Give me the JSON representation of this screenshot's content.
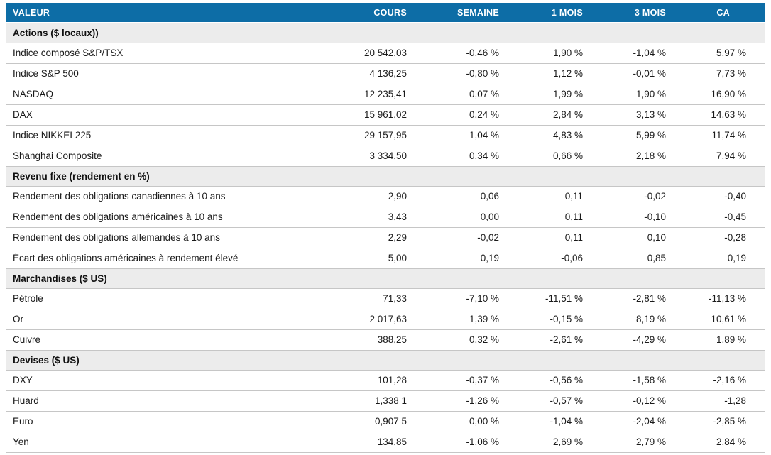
{
  "theme": {
    "header_bg": "#0d6da6",
    "positive": "#00a25d",
    "negative": "#e11b22",
    "neutral": "#1a1a1a",
    "section_bg": "#ececec",
    "row_border": "#c6c6c6"
  },
  "table": {
    "columns": [
      "VALEUR",
      "COURS",
      "SEMAINE",
      "1 MOIS",
      "3 MOIS",
      "CA"
    ],
    "sections": [
      {
        "title": "Actions ($ locaux))",
        "rows": [
          {
            "label": "Indice composé S&P/TSX",
            "cours": "20 542,03",
            "changes": [
              "-0,46 %",
              "1,90 %",
              "-1,04 %",
              "5,97 %"
            ],
            "trend": [
              "neg",
              "pos",
              "neg",
              "pos"
            ]
          },
          {
            "label": "Indice S&P 500",
            "cours": "4 136,25",
            "changes": [
              "-0,80 %",
              "1,12 %",
              "-0,01 %",
              "7,73 %"
            ],
            "trend": [
              "neg",
              "pos",
              "neg",
              "pos"
            ]
          },
          {
            "label": "NASDAQ",
            "cours": "12 235,41",
            "changes": [
              "0,07 %",
              "1,99 %",
              "1,90 %",
              "16,90 %"
            ],
            "trend": [
              "pos",
              "pos",
              "pos",
              "pos"
            ]
          },
          {
            "label": "DAX",
            "cours": "15 961,02",
            "changes": [
              "0,24 %",
              "2,84 %",
              "3,13 %",
              "14,63 %"
            ],
            "trend": [
              "pos",
              "pos",
              "pos",
              "pos"
            ]
          },
          {
            "label": "Indice NIKKEI 225",
            "cours": "29 157,95",
            "changes": [
              "1,04 %",
              "4,83 %",
              "5,99 %",
              "11,74 %"
            ],
            "trend": [
              "pos",
              "pos",
              "pos",
              "pos"
            ]
          },
          {
            "label": "Shanghai Composite",
            "cours": "3 334,50",
            "changes": [
              "0,34 %",
              "0,66 %",
              "2,18 %",
              "7,94 %"
            ],
            "trend": [
              "pos",
              "pos",
              "pos",
              "pos"
            ]
          }
        ]
      },
      {
        "title": "Revenu fixe (rendement en %)",
        "rows": [
          {
            "label": "Rendement des obligations canadiennes à 10 ans",
            "cours": "2,90",
            "changes": [
              "0,06",
              "0,11",
              "-0,02",
              "-0,40"
            ],
            "trend": [
              "neg",
              "neg",
              "pos",
              "pos"
            ]
          },
          {
            "label": "Rendement des obligations américaines à 10 ans",
            "cours": "3,43",
            "changes": [
              "0,00",
              "0,11",
              "-0,10",
              "-0,45"
            ],
            "trend": [
              "neg",
              "neg",
              "pos",
              "pos"
            ]
          },
          {
            "label": "Rendement des obligations allemandes à 10 ans",
            "cours": "2,29",
            "changes": [
              "-0,02",
              "0,11",
              "0,10",
              "-0,28"
            ],
            "trend": [
              "pos",
              "neg",
              "neg",
              "pos"
            ]
          },
          {
            "label": "Écart des obligations américaines à rendement élevé",
            "cours": "5,00",
            "changes": [
              "0,19",
              "-0,06",
              "0,85",
              "0,19"
            ],
            "trend": [
              "neg",
              "pos",
              "neg",
              "neg"
            ]
          }
        ]
      },
      {
        "title": "Marchandises ($ US)",
        "rows": [
          {
            "label": "Pétrole",
            "cours": "71,33",
            "changes": [
              "-7,10 %",
              "-11,51 %",
              "-2,81 %",
              "-11,13 %"
            ],
            "trend": [
              "neg",
              "neg",
              "neg",
              "neg"
            ]
          },
          {
            "label": "Or",
            "cours": "2 017,63",
            "changes": [
              "1,39 %",
              "-0,15 %",
              "8,19 %",
              "10,61 %"
            ],
            "trend": [
              "pos",
              "neg",
              "pos",
              "pos"
            ]
          },
          {
            "label": "Cuivre",
            "cours": "388,25",
            "changes": [
              "0,32 %",
              "-2,61 %",
              "-4,29 %",
              "1,89 %"
            ],
            "trend": [
              "pos",
              "neg",
              "neg",
              "pos"
            ]
          }
        ]
      },
      {
        "title": "Devises ($ US)",
        "rows": [
          {
            "label": "DXY",
            "cours": "101,28",
            "changes": [
              "-0,37 %",
              "-0,56 %",
              "-1,58 %",
              "-2,16 %"
            ],
            "trend": [
              "neg",
              "neg",
              "neg",
              "neg"
            ]
          },
          {
            "label": "Huard",
            "cours": "1,338 1",
            "changes": [
              "-1,26 %",
              "-0,57 %",
              "-0,12 %",
              "-1,28"
            ],
            "trend": [
              "neg",
              "neg",
              "neg",
              "neg"
            ]
          },
          {
            "label": "Euro",
            "cours": "0,907 5",
            "changes": [
              "0,00 %",
              "-1,04 %",
              "-2,04 %",
              "-2,85 %"
            ],
            "trend": [
              "neu",
              "neg",
              "neg",
              "neg"
            ]
          },
          {
            "label": "Yen",
            "cours": "134,85",
            "changes": [
              "-1,06 %",
              "2,69 %",
              "2,79 %",
              "2,84 %"
            ],
            "trend": [
              "neg",
              "pos",
              "pos",
              "pos"
            ]
          }
        ]
      }
    ]
  }
}
